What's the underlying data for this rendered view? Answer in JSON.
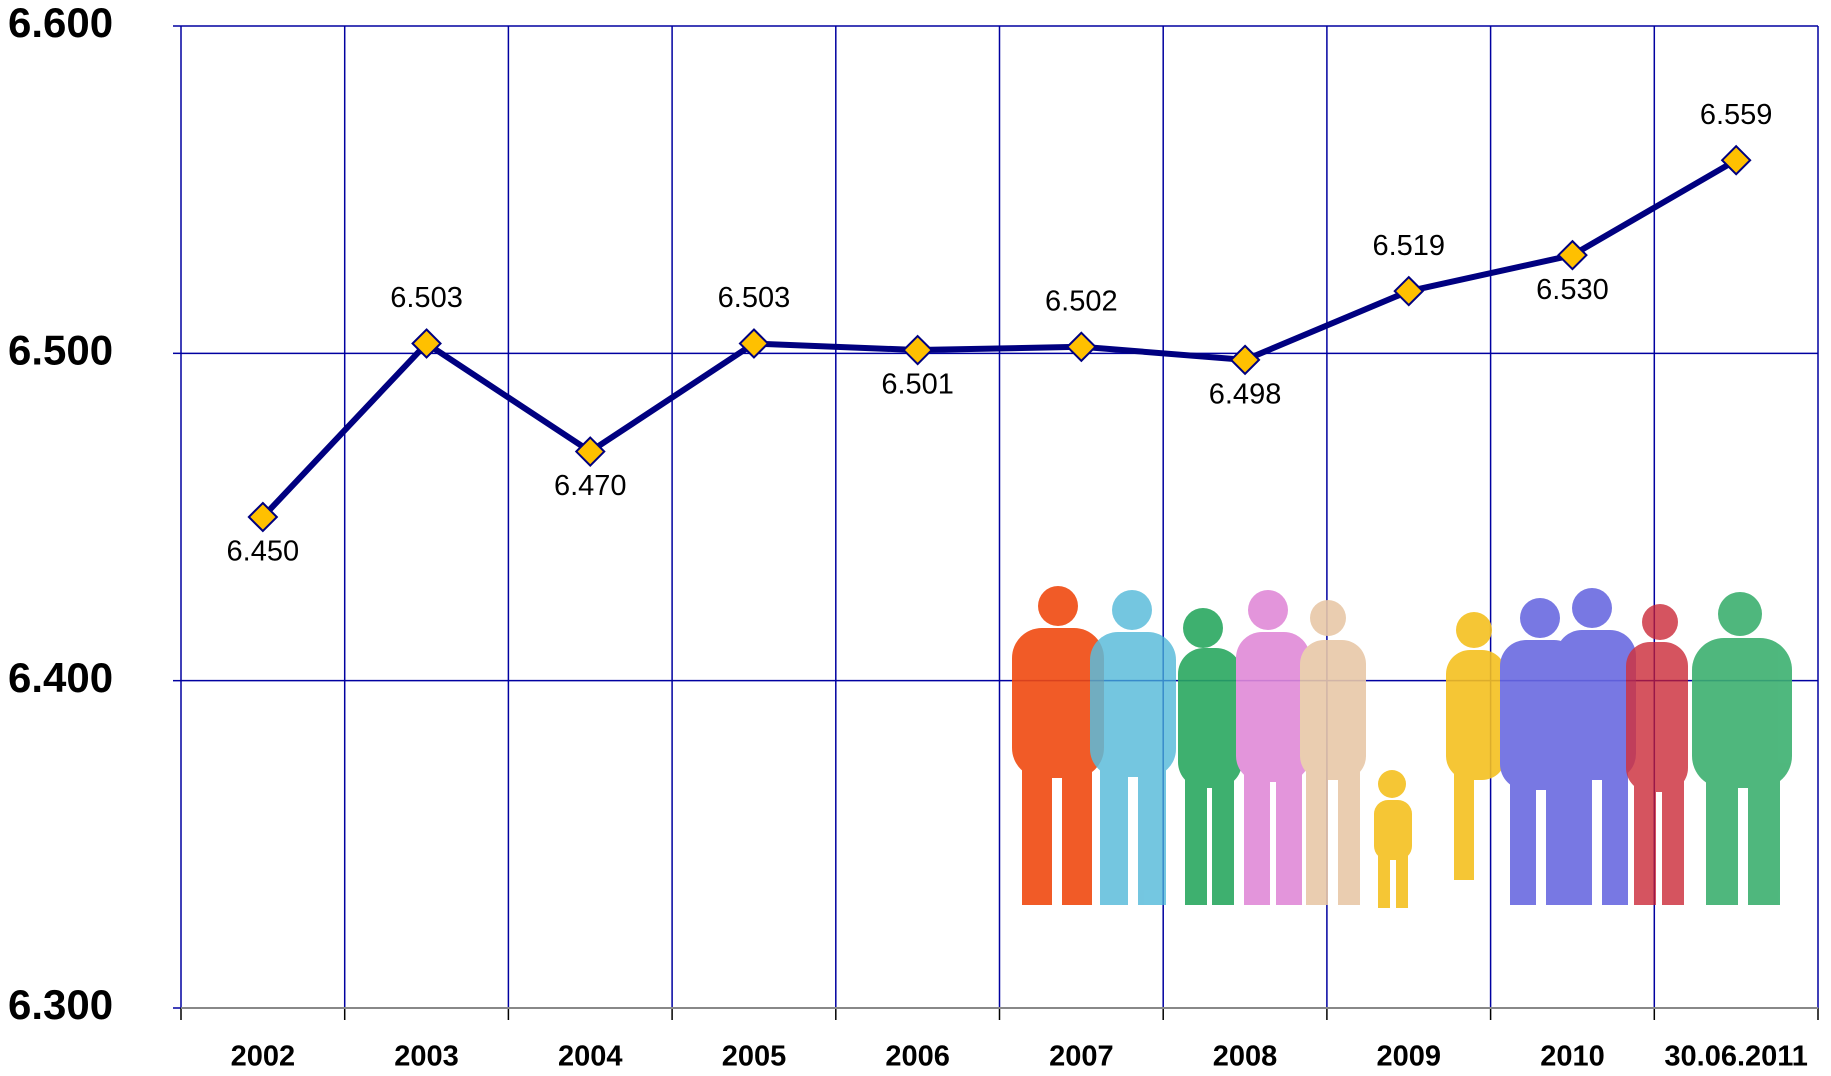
{
  "chart_data": {
    "type": "line",
    "categories": [
      "2002",
      "2003",
      "2004",
      "2005",
      "2006",
      "2007",
      "2008",
      "2009",
      "2010",
      "30.06.2011"
    ],
    "series": [
      {
        "color": "#000080",
        "marker_color": "#ffc000",
        "values": [
          6.45,
          6.503,
          6.47,
          6.503,
          6.501,
          6.502,
          6.498,
          6.519,
          6.53,
          6.559
        ],
        "value_labels": [
          "6.450",
          "6.503",
          "6.470",
          "6.503",
          "6.501",
          "6.502",
          "6.498",
          "6.519",
          "6.530",
          "6.559"
        ]
      }
    ],
    "ylim": [
      6.3,
      6.6
    ],
    "yticks": [
      {
        "value": 6.3,
        "label": "6.300"
      },
      {
        "value": 6.4,
        "label": "6.400"
      },
      {
        "value": 6.5,
        "label": "6.500"
      },
      {
        "value": 6.6,
        "label": "6.600"
      }
    ],
    "grid": true
  }
}
